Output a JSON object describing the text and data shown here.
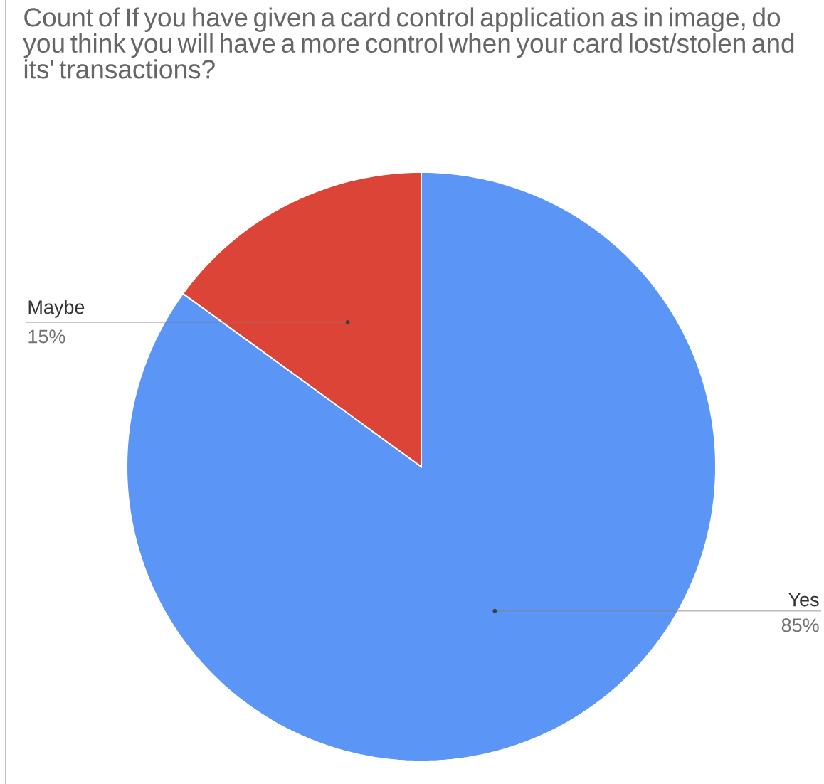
{
  "chart_data": {
    "type": "pie",
    "title": "Count of If you have given a card control application as in image, do you think you will have a more control when your card lost/stolen and its' transactions?",
    "categories": [
      "Yes",
      "Maybe"
    ],
    "values": [
      85,
      15
    ],
    "value_labels": [
      "85%",
      "15%"
    ],
    "colors": [
      "#5b95f5",
      "#db4437"
    ]
  }
}
